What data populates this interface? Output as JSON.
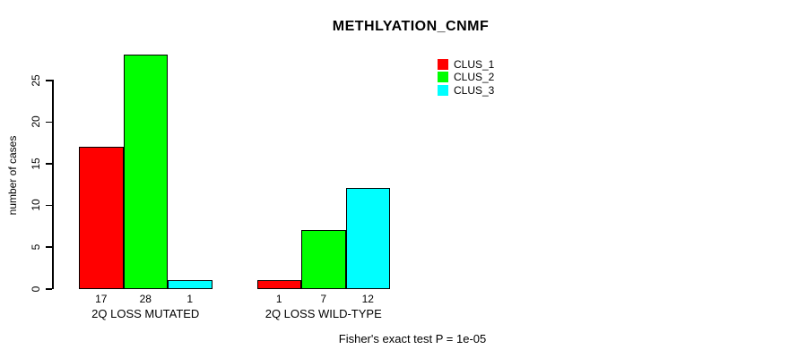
{
  "title": "METHLYATION_CNMF",
  "y_axis": {
    "label": "number of cases",
    "ticks": [
      0,
      5,
      10,
      15,
      20,
      25
    ]
  },
  "footer": "Fisher's exact test P = 1e-05",
  "legend": {
    "items": [
      {
        "label": "CLUS_1",
        "color": "#ff0000"
      },
      {
        "label": "CLUS_2",
        "color": "#00ff00"
      },
      {
        "label": "CLUS_3",
        "color": "#00ffff"
      }
    ]
  },
  "chart_data": {
    "type": "bar",
    "title": "METHLYATION_CNMF",
    "ylabel": "number of cases",
    "xlabel": "",
    "categories": [
      "2Q LOSS MUTATED",
      "2Q LOSS WILD-TYPE"
    ],
    "series": [
      {
        "name": "CLUS_1",
        "color": "#ff0000",
        "values": [
          17,
          1
        ]
      },
      {
        "name": "CLUS_2",
        "color": "#00ff00",
        "values": [
          28,
          7
        ]
      },
      {
        "name": "CLUS_3",
        "color": "#00ffff",
        "values": [
          1,
          12
        ]
      }
    ],
    "bar_value_labels": [
      [
        17,
        28,
        1
      ],
      [
        1,
        7,
        12
      ]
    ],
    "yticks": [
      0,
      5,
      10,
      15,
      20,
      25
    ],
    "ylim": [
      0,
      28
    ],
    "grid": false,
    "legend_position": "top-right-inside",
    "legend_border": false,
    "annotation": "Fisher's exact test P = 1e-05"
  }
}
